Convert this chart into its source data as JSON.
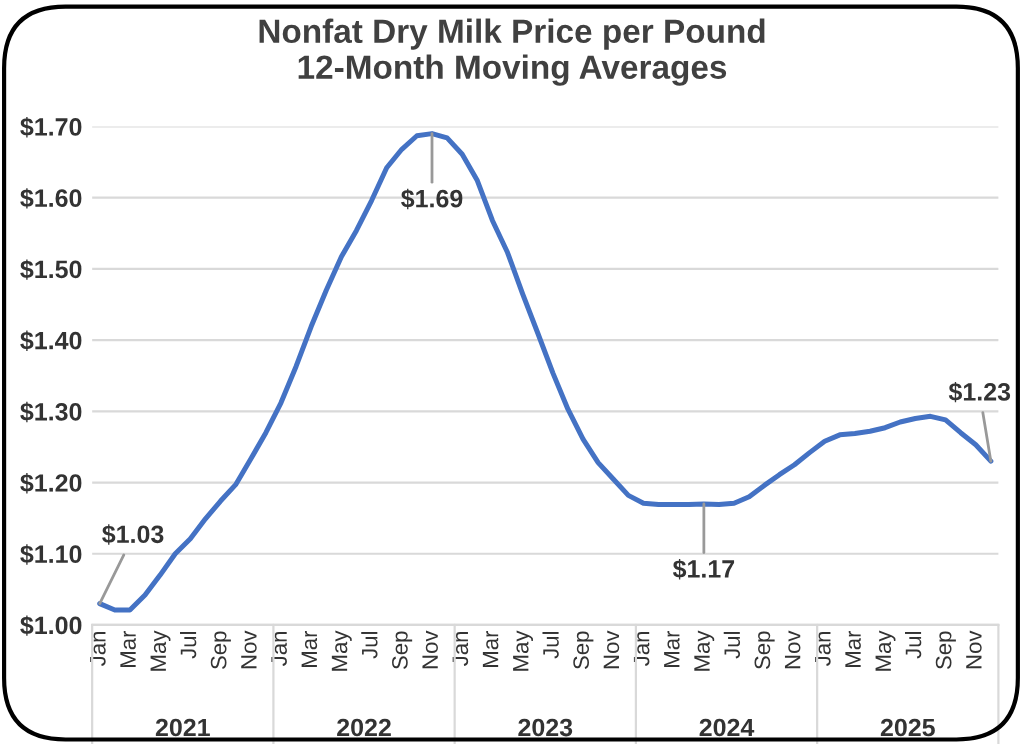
{
  "chart_data": {
    "type": "line",
    "title": "Nonfat Dry Milk Price per Pound\n12-Month Moving Averages",
    "categories": [
      "Jan",
      null,
      "Mar",
      null,
      "May",
      null,
      "Jul",
      null,
      "Sep",
      null,
      "Nov",
      null,
      "Jan",
      null,
      "Mar",
      null,
      "May",
      null,
      "Jul",
      null,
      "Sep",
      null,
      "Nov",
      null,
      "Jan",
      null,
      "Mar",
      null,
      "May",
      null,
      "Jul",
      null,
      "Sep",
      null,
      "Nov",
      null,
      "Jan",
      null,
      "Mar",
      null,
      "May",
      null,
      "Jul",
      null,
      "Sep",
      null,
      "Nov",
      null,
      "Jan",
      null,
      "Mar",
      null,
      "May",
      null,
      "Jul",
      null,
      "Sep",
      null,
      "Nov",
      null
    ],
    "series": [
      {
        "color": "#4472c4",
        "values": [
          1.03,
          1.021,
          1.021,
          1.042,
          1.07,
          1.1,
          1.121,
          1.149,
          1.174,
          1.197,
          1.233,
          1.27,
          1.312,
          1.363,
          1.419,
          1.47,
          1.517,
          1.554,
          1.596,
          1.642,
          1.668,
          1.687,
          1.69,
          1.684,
          1.661,
          1.624,
          1.568,
          1.523,
          1.465,
          1.41,
          1.354,
          1.303,
          1.261,
          1.228,
          1.205,
          1.182,
          1.171,
          1.169,
          1.169,
          1.169,
          1.17,
          1.169,
          1.171,
          1.18,
          1.196,
          1.211,
          1.225,
          1.242,
          1.258,
          1.267,
          1.269,
          1.272,
          1.277,
          1.285,
          1.29,
          1.293,
          1.288,
          1.27,
          1.253,
          1.23
        ],
        "value_labels": [
          "$1.03",
          null,
          null,
          null,
          null,
          null,
          null,
          null,
          null,
          null,
          null,
          null,
          null,
          null,
          null,
          null,
          null,
          null,
          null,
          null,
          null,
          null,
          "$1.69",
          null,
          null,
          null,
          null,
          null,
          null,
          null,
          null,
          null,
          null,
          null,
          null,
          null,
          null,
          null,
          null,
          null,
          "$1.17",
          null,
          null,
          null,
          null,
          null,
          null,
          null,
          null,
          null,
          null,
          null,
          null,
          null,
          null,
          null,
          null,
          null,
          null,
          "$1.23"
        ]
      }
    ],
    "annotations": [
      "2021",
      "2022",
      "2023",
      "2024",
      "2025"
    ],
    "ylim": [
      1.0,
      1.7
    ],
    "yticks": [
      {
        "value": 1.0,
        "label": "$1.00"
      },
      {
        "value": 1.1,
        "label": "$1.10"
      },
      {
        "value": 1.2,
        "label": "$1.20"
      },
      {
        "value": 1.3,
        "label": "$1.30"
      },
      {
        "value": 1.4,
        "label": "$1.40"
      },
      {
        "value": 1.5,
        "label": "$1.50"
      },
      {
        "value": 1.6,
        "label": "$1.60"
      },
      {
        "value": 1.7,
        "label": "$1.70"
      }
    ],
    "grid": "y",
    "legend": false,
    "marker": "none",
    "line_style": "solid"
  }
}
